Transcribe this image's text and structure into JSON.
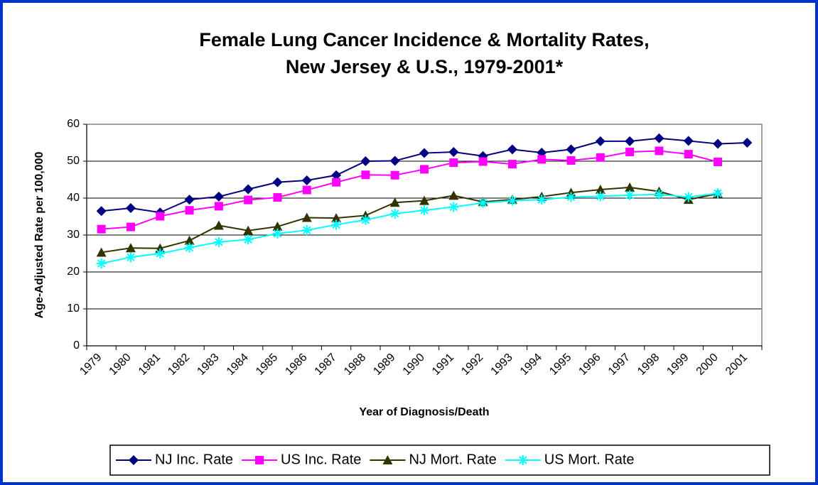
{
  "chart_data": {
    "type": "line",
    "title": [
      "Female Lung Cancer Incidence & Mortality Rates,",
      "New Jersey & U.S., 1979-2001*"
    ],
    "x_label": "Year of Diagnosis/Death",
    "y_label": "Age-Adjusted Rate per 100,000",
    "categories": [
      "1979",
      "1980",
      "1981",
      "1982",
      "1983",
      "1984",
      "1985",
      "1986",
      "1987",
      "1988",
      "1989",
      "1990",
      "1991",
      "1992",
      "1993",
      "1994",
      "1995",
      "1996",
      "1997",
      "1998",
      "1999",
      "2000",
      "2001"
    ],
    "series": [
      {
        "name": "NJ Inc. Rate",
        "color": "#000080",
        "marker": "diamond",
        "values": [
          36.5,
          37.3,
          36.1,
          39.6,
          40.4,
          42.4,
          44.3,
          44.8,
          46.2,
          50.0,
          50.1,
          52.2,
          52.5,
          51.4,
          53.2,
          52.3,
          53.2,
          55.4,
          55.4,
          56.2,
          55.5,
          54.7,
          55.0
        ]
      },
      {
        "name": "US Inc. Rate",
        "color": "#ff00ff",
        "marker": "square",
        "values": [
          31.6,
          32.2,
          35.1,
          36.7,
          37.8,
          39.5,
          40.2,
          42.2,
          44.3,
          46.3,
          46.2,
          47.8,
          49.6,
          49.9,
          49.2,
          50.5,
          50.2,
          51.0,
          52.5,
          52.8,
          51.9,
          49.8,
          null
        ]
      },
      {
        "name": "NJ Mort. Rate",
        "color": "#333300",
        "marker": "triangle",
        "values": [
          25.3,
          26.5,
          26.4,
          28.5,
          32.6,
          31.2,
          32.3,
          34.7,
          34.6,
          35.3,
          38.8,
          39.3,
          40.7,
          39.0,
          39.6,
          40.4,
          41.5,
          42.3,
          42.9,
          41.8,
          39.6,
          41.2,
          null
        ]
      },
      {
        "name": "US Mort. Rate",
        "color": "#00ffff",
        "marker": "asterisk",
        "values": [
          22.3,
          24.0,
          25.0,
          26.6,
          28.1,
          28.8,
          30.4,
          31.3,
          32.8,
          34.1,
          35.8,
          36.7,
          37.6,
          38.7,
          39.3,
          39.6,
          40.3,
          40.5,
          40.8,
          41.0,
          40.3,
          41.3,
          null
        ]
      }
    ],
    "ylim": [
      0,
      60
    ],
    "yticks": [
      0,
      10,
      20,
      30,
      40,
      50,
      60
    ],
    "grid": true,
    "legend": "bottom"
  }
}
